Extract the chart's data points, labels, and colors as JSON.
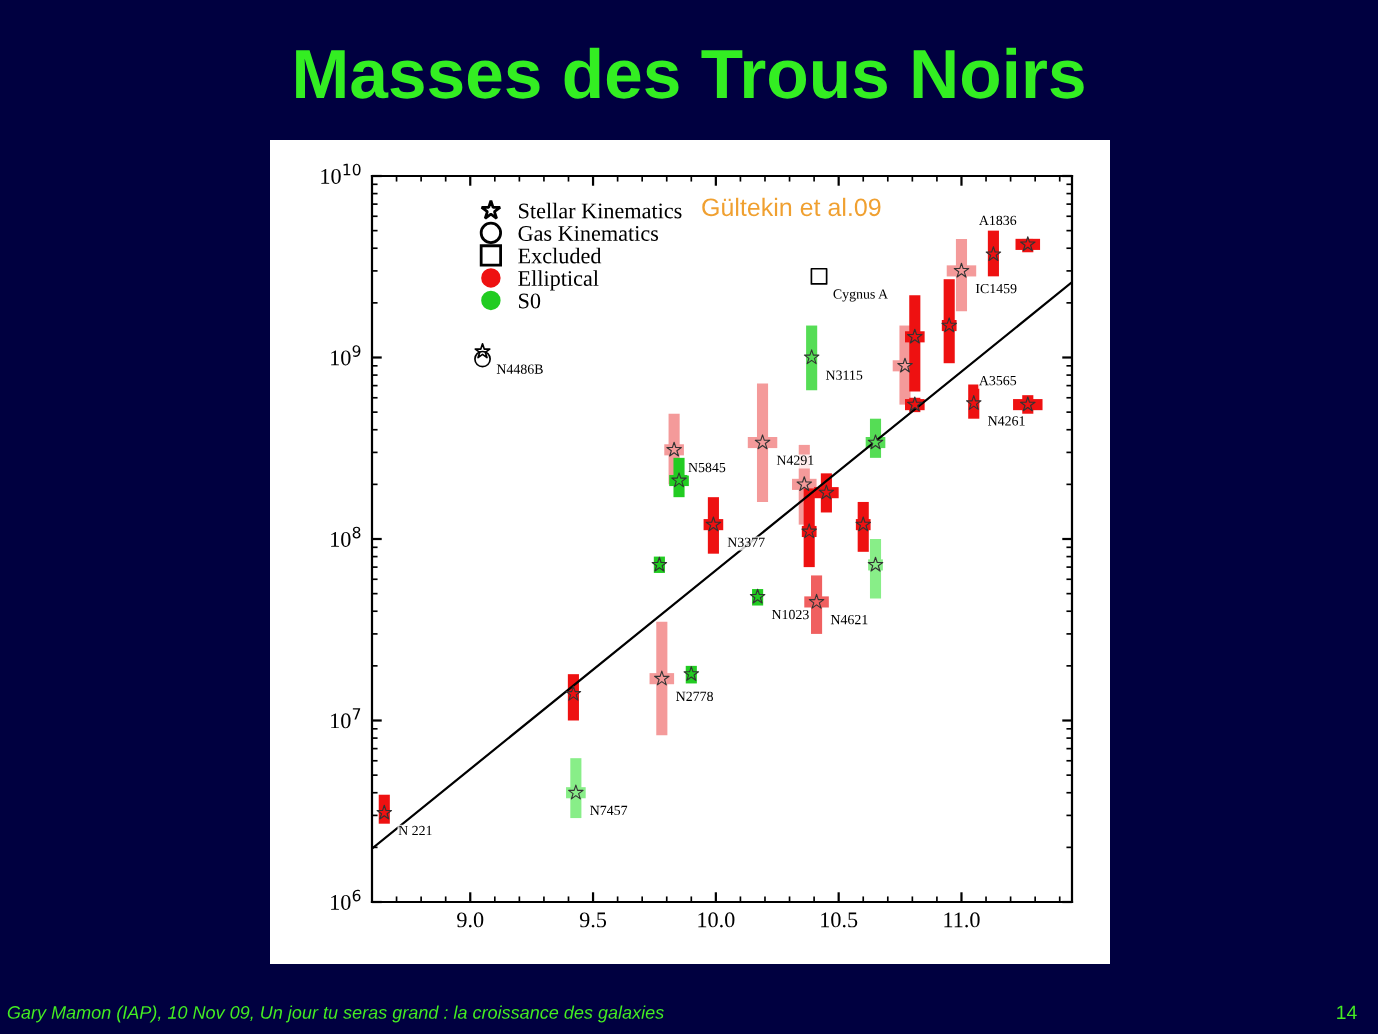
{
  "chart_data": {
    "type": "scatter",
    "title": "Masses des Trous Noirs",
    "xlim": [
      8.6,
      11.45
    ],
    "ylim": [
      1000000.0,
      10000000000.0
    ],
    "log": "y",
    "xticks": [
      {
        "value": 9,
        "label": "9.0"
      },
      {
        "value": 9.5,
        "label": "9.5"
      },
      {
        "value": 10,
        "label": "10.0"
      },
      {
        "value": 10.5,
        "label": "10.5"
      },
      {
        "value": 11,
        "label": "11.0"
      }
    ],
    "yticks": [
      {
        "value": 1000000.0,
        "label": "10$^{6}$"
      },
      {
        "value": 10000000.0,
        "label": "10$^{7}$"
      },
      {
        "value": 100000000.0,
        "label": "10$^{8}$"
      },
      {
        "value": 1000000000.0,
        "label": "10$^{9}$"
      },
      {
        "value": 10000000000.0,
        "label": "10$^{10}$"
      }
    ],
    "grid": false,
    "legend": "top left",
    "series": [
      {
        "name": "Stellar Kinematics",
        "type": "scatter",
        "marker": "star",
        "color": "#000000",
        "x": [
          9.05
        ],
        "values": [
          1080000000.0
        ]
      },
      {
        "name": "Gas Kinematics",
        "type": "scatter",
        "marker": "circle",
        "color": "#000000",
        "x": [
          9.05
        ],
        "values": [
          980000000.0
        ]
      },
      {
        "name": "Excluded",
        "type": "scatter",
        "marker": "square",
        "color": "#000000",
        "x": [
          10.42
        ],
        "values": [
          2800000000.0
        ]
      },
      {
        "name": "Elliptical",
        "type": "scatter",
        "marker": "star",
        "color": "#ee1111",
        "x": [
          8.65,
          9.42,
          9.78,
          9.99,
          9.83,
          10.19,
          10.36,
          10.38,
          10.41,
          10.45,
          10.6,
          10.77,
          10.81,
          10.81,
          10.95,
          11.0,
          11.13,
          11.27,
          11.05,
          11.27
        ],
        "values": [
          3100000.0,
          14000000.0,
          17000000.0,
          120000000.0,
          310000000.0,
          340000000.0,
          200000000.0,
          110000000.0,
          45000000.0,
          180000000.0,
          120000000.0,
          900000000.0,
          1300000000.0,
          550000000.0,
          1500000000.0,
          3000000000.0,
          3700000000.0,
          4200000000.0,
          560000000.0,
          550000000.0
        ],
        "errors": [
          [
            2700000.0,
            3900000.0
          ],
          [
            10000000.0,
            18000000.0
          ],
          [
            8300000.0,
            35000000.0
          ],
          [
            83000000.0,
            170000000.0
          ],
          [
            200000000.0,
            490000000.0
          ],
          [
            160000000.0,
            720000000.0
          ],
          [
            120000000.0,
            330000000.0
          ],
          [
            70000000.0,
            190000000.0
          ],
          [
            30000000.0,
            63000000.0
          ],
          [
            140000000.0,
            230000000.0
          ],
          [
            85000000.0,
            160000000.0
          ],
          [
            550000000.0,
            1500000000.0
          ],
          [
            650000000.0,
            2200000000.0
          ],
          [
            500000000.0,
            600000000.0
          ],
          [
            930000000.0,
            2700000000.0
          ],
          [
            1800000000.0,
            4500000000.0
          ],
          [
            2800000000.0,
            5000000000.0
          ],
          [
            3800000000.0,
            4500000000.0
          ],
          [
            460000000.0,
            710000000.0
          ],
          [
            490000000.0,
            620000000.0
          ]
        ],
        "xerrors": [
          0.02,
          0.02,
          0.05,
          0.04,
          0.04,
          0.06,
          0.05,
          0.03,
          0.05,
          0.05,
          0.03,
          0.05,
          0.04,
          0.04,
          0.03,
          0.06,
          0.02,
          0.05,
          0.02,
          0.06
        ],
        "colors": [
          "#ee1111",
          "#ee1111",
          "#f49a9a",
          "#ee1111",
          "#f49a9a",
          "#f49a9a",
          "#f49a9a",
          "#ee1111",
          "#f06060",
          "#ee1111",
          "#ee1111",
          "#f49a9a",
          "#ee1111",
          "#ee1111",
          "#ee1111",
          "#f49a9a",
          "#ee1111",
          "#ee1111",
          "#ee1111",
          "#ee1111"
        ]
      },
      {
        "name": "S0",
        "type": "scatter",
        "marker": "star",
        "color": "#22cc22",
        "x": [
          9.43,
          9.77,
          9.9,
          9.85,
          10.17,
          10.39,
          10.65,
          10.65
        ],
        "values": [
          4000000.0,
          72000000.0,
          18000000.0,
          210000000.0,
          48000000.0,
          1000000000.0,
          340000000.0,
          72000000.0
        ],
        "errors": [
          [
            2900000.0,
            6200000.0
          ],
          [
            65000000.0,
            80000000.0
          ],
          [
            16000000.0,
            20000000.0
          ],
          [
            170000000.0,
            280000000.0
          ],
          [
            43000000.0,
            53000000.0
          ],
          [
            660000000.0,
            1500000000.0
          ],
          [
            280000000.0,
            460000000.0
          ],
          [
            47000000.0,
            100000000.0
          ]
        ],
        "xerrors": [
          0.04,
          0.02,
          0.015,
          0.04,
          0.015,
          0.02,
          0.04,
          0.03
        ],
        "colors": [
          "#88ee88",
          "#22cc22",
          "#22cc22",
          "#22cc22",
          "#22cc22",
          "#55dd55",
          "#55dd55",
          "#88ee88"
        ]
      },
      {
        "type": "line",
        "color": "#000000",
        "marker": "none",
        "line_style": "solid",
        "x": [
          8.6,
          11.45
        ],
        "values": [
          1970000.0,
          2600000000.0
        ]
      }
    ],
    "annotations": [
      {
        "text": "N 221",
        "x": 8.65,
        "y": 3100000.0
      },
      {
        "text": "N7457",
        "x": 9.43,
        "y": 4000000.0
      },
      {
        "text": "N2778",
        "x": 9.78,
        "y": 17000000.0
      },
      {
        "text": "N4486B",
        "x": 9.05,
        "y": 1080000000.0
      },
      {
        "text": "Cygnus A",
        "x": 10.42,
        "y": 2800000000.0
      },
      {
        "text": "N3115",
        "x": 10.39,
        "y": 1000000000.0
      },
      {
        "text": "N4291",
        "x": 10.19,
        "y": 340000000.0
      },
      {
        "text": "N5845",
        "x": 9.83,
        "y": 310000000.0
      },
      {
        "text": "N3377",
        "x": 9.99,
        "y": 120000000.0
      },
      {
        "text": "N4621",
        "x": 10.41,
        "y": 45000000.0
      },
      {
        "text": "N1023",
        "x": 10.17,
        "y": 48000000.0
      },
      {
        "text": "IC1459",
        "x": 11.0,
        "y": 3000000000.0
      },
      {
        "text": "A1836",
        "x": 11.27,
        "y": 4200000000.0
      },
      {
        "text": "N4261",
        "x": 11.05,
        "y": 560000000.0
      },
      {
        "text": "A3565",
        "x": 11.27,
        "y": 550000000.0
      },
      "Gültekin et al.09",
      "Gary Mamon (IAP), 10 Nov 09, Un jour tu seras grand : la croissance des galaxies",
      "14"
    ]
  }
}
